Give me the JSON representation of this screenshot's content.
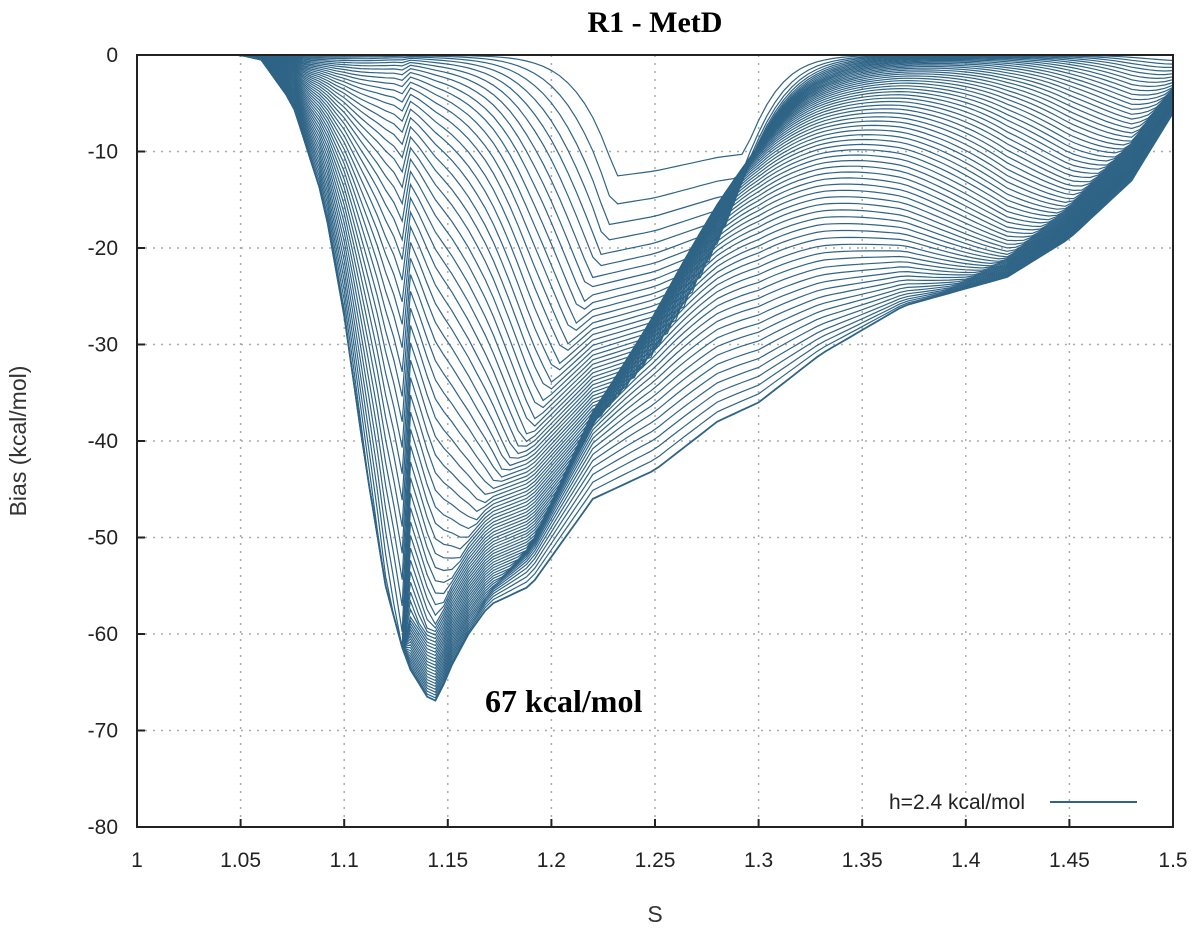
{
  "chart_data": {
    "type": "line",
    "title": "R1 - MetD",
    "xlabel": "S",
    "ylabel": "Bias (kcal/mol)",
    "xlim": [
      1,
      1.5
    ],
    "ylim": [
      -80,
      0
    ],
    "xticks": [
      "1",
      "1.05",
      "1.1",
      "1.15",
      "1.2",
      "1.25",
      "1.3",
      "1.35",
      "1.4",
      "1.45",
      "1.5"
    ],
    "yticks": [
      "0",
      "-10",
      "-20",
      "-30",
      "-40",
      "-50",
      "-60",
      "-70",
      "-80"
    ],
    "grid": true,
    "legend": {
      "label": "h=2.4 kcal/mol",
      "placement": "bottom-right"
    },
    "annotation": "67 kcal/mol",
    "series_color": "#2f6486",
    "n_curves": 70,
    "final_curve": {
      "x": [
        1.05,
        1.06,
        1.075,
        1.09,
        1.1,
        1.11,
        1.12,
        1.13,
        1.14,
        1.145,
        1.15,
        1.16,
        1.17,
        1.19,
        1.2,
        1.22,
        1.25,
        1.28,
        1.3,
        1.33,
        1.37,
        1.42,
        1.45,
        1.48,
        1.5
      ],
      "y": [
        0,
        -0.5,
        -5,
        -15,
        -27,
        -42,
        -55,
        -63,
        -66.5,
        -67,
        -64,
        -60,
        -57,
        -55,
        -52,
        -46,
        -43,
        -38,
        -36,
        -31,
        -26,
        -23,
        -19,
        -13,
        -6
      ]
    }
  }
}
